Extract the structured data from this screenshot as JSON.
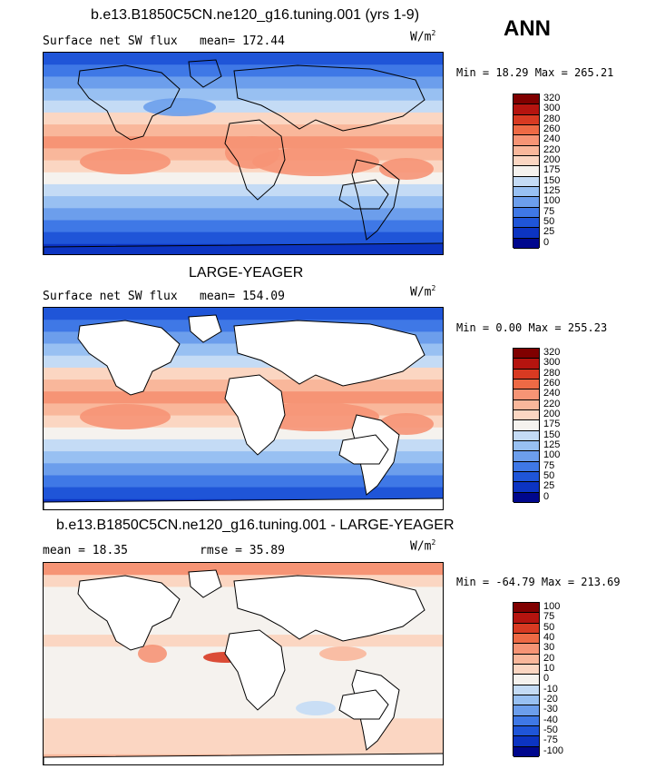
{
  "season": "ANN",
  "panels": [
    {
      "title": "b.e13.B1850C5CN.ne120_g16.tuning.001 (yrs 1-9)",
      "left_label": "Surface net SW flux",
      "stat1": "mean= 172.44",
      "stat2": "",
      "units_base": "W/m",
      "units_exp": "2",
      "minmax": "Min =  18.29 Max = 265.21",
      "colorbar": [
        "320",
        "300",
        "280",
        "260",
        "240",
        "220",
        "200",
        "175",
        "150",
        "125",
        "100",
        "75",
        "50",
        "25",
        "0"
      ],
      "land_masked": false
    },
    {
      "title": "LARGE-YEAGER",
      "left_label": "Surface net SW flux",
      "stat1": "mean= 154.09",
      "stat2": "",
      "units_base": "W/m",
      "units_exp": "2",
      "minmax": "Min =   0.00 Max = 255.23",
      "colorbar": [
        "320",
        "300",
        "280",
        "260",
        "240",
        "220",
        "200",
        "175",
        "150",
        "125",
        "100",
        "75",
        "50",
        "25",
        "0"
      ],
      "land_masked": true
    },
    {
      "title": "b.e13.B1850C5CN.ne120_g16.tuning.001 - LARGE-YEAGER",
      "left_label": "mean =   18.35",
      "stat1": "rmse =   35.89",
      "stat2": "",
      "units_base": "W/m",
      "units_exp": "2",
      "minmax": "Min = -64.79 Max = 213.69",
      "colorbar": [
        "100",
        "75",
        "50",
        "40",
        "30",
        "20",
        "10",
        "0",
        "-10",
        "-20",
        "-30",
        "-40",
        "-50",
        "-75",
        "-100"
      ],
      "land_masked": true
    }
  ],
  "colors": {
    "swatches": [
      "#800000",
      "#b5140f",
      "#d83a22",
      "#ee6a45",
      "#f69475",
      "#f9b79b",
      "#fbd6c2",
      "#f5f2ee",
      "#c4dbf5",
      "#98c0f2",
      "#6c9eec",
      "#3f78e6",
      "#1f55d8",
      "#0c34c2",
      "#00078d"
    ],
    "land": "#ffffff"
  }
}
